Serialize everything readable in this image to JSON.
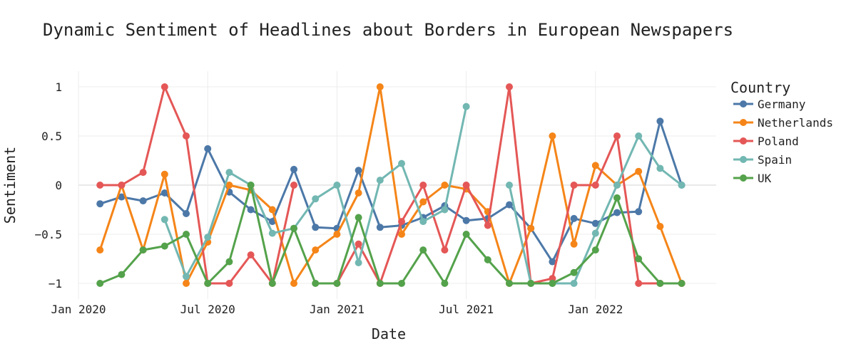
{
  "chart_data": {
    "type": "line",
    "title": "Dynamic Sentiment of Headlines about Borders in European Newspapers",
    "xlabel": "Date",
    "ylabel": "Sentiment",
    "x_ticks": [
      "Jan 2020",
      "Jul 2020",
      "Jan 2021",
      "Jul 2021",
      "Jan 2022"
    ],
    "x": [
      "2020-02",
      "2020-03",
      "2020-04",
      "2020-05",
      "2020-06",
      "2020-07",
      "2020-08",
      "2020-09",
      "2020-10",
      "2020-11",
      "2020-12",
      "2021-01",
      "2021-02",
      "2021-03",
      "2021-04",
      "2021-05",
      "2021-06",
      "2021-07",
      "2021-08",
      "2021-09",
      "2021-10",
      "2021-11",
      "2021-12",
      "2022-01",
      "2022-02",
      "2022-03",
      "2022-04",
      "2022-05"
    ],
    "y_ticks": [
      "1",
      "0.5",
      "0",
      "−0.5",
      "−1"
    ],
    "ylim": [
      -1.18,
      1.15
    ],
    "legend_title": "Country",
    "legend_position": "right",
    "series": [
      {
        "name": "Germany",
        "color": "#4c78a8",
        "values": [
          -0.19,
          -0.12,
          -0.16,
          -0.08,
          -0.29,
          0.37,
          -0.07,
          -0.25,
          -0.37,
          0.16,
          -0.43,
          -0.44,
          0.15,
          -0.43,
          -0.41,
          -0.33,
          -0.21,
          -0.36,
          -0.34,
          -0.2,
          -0.44,
          -0.78,
          -0.34,
          -0.39,
          -0.28,
          -0.27,
          0.65,
          0.0
        ]
      },
      {
        "name": "Netherlands",
        "color": "#f58518",
        "values": [
          -0.66,
          0.0,
          -0.66,
          0.11,
          -1.0,
          -0.58,
          0.0,
          -0.05,
          -0.25,
          -1.0,
          -0.66,
          -0.5,
          -0.08,
          1.0,
          -0.5,
          -0.17,
          0.0,
          -0.04,
          -0.27,
          -1.0,
          -0.44,
          0.5,
          -0.6,
          0.2,
          0.0,
          0.14,
          -0.42,
          -1.0
        ]
      },
      {
        "name": "Poland",
        "color": "#e45756",
        "values": [
          0.0,
          0.0,
          0.13,
          1.0,
          0.5,
          -1.0,
          -1.0,
          -0.71,
          -1.0,
          0.0,
          null,
          -1.0,
          -0.6,
          -1.0,
          -0.37,
          0.0,
          -0.66,
          0.0,
          -0.41,
          1.0,
          -1.0,
          -0.95,
          0.0,
          0.0,
          0.5,
          -1.0,
          -1.0,
          -1.0
        ]
      },
      {
        "name": "Spain",
        "color": "#72b7b2",
        "values": [
          null,
          null,
          null,
          -0.35,
          -0.93,
          -0.53,
          0.13,
          0.0,
          -0.49,
          -0.44,
          -0.14,
          0.0,
          -0.79,
          0.05,
          0.22,
          -0.37,
          -0.25,
          0.8,
          null,
          0.0,
          -1.0,
          -1.0,
          -1.0,
          -0.49,
          0.0,
          0.5,
          0.17,
          0.0
        ]
      },
      {
        "name": "UK",
        "color": "#54a24b",
        "values": [
          -1.0,
          -0.91,
          -0.66,
          -0.62,
          -0.5,
          -1.0,
          -0.78,
          0.0,
          -1.0,
          -0.44,
          -1.0,
          -1.0,
          -0.33,
          -1.0,
          -1.0,
          -0.66,
          -1.0,
          -0.5,
          -0.76,
          -1.0,
          -1.0,
          -1.0,
          -0.89,
          -0.66,
          -0.13,
          -0.75,
          -1.0,
          -1.0
        ]
      }
    ]
  }
}
